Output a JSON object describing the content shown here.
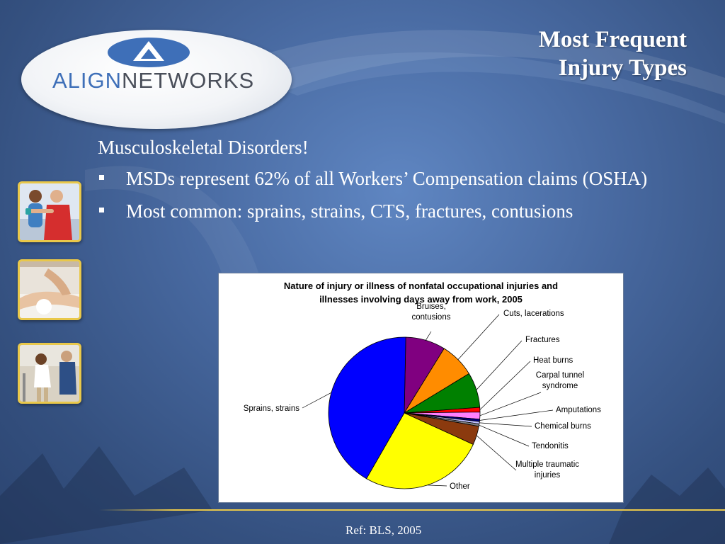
{
  "slide": {
    "title_line1": "Most Frequent",
    "title_line2": "Injury Types",
    "logo": {
      "align": "ALIGN",
      "networks": "NETWORKS"
    },
    "intro": "Musculoskeletal Disorders!",
    "bullets": [
      "MSDs represent 62% of all Workers’ Compensation claims (OSHA)",
      "Most common: sprains, strains, CTS, fractures, contusions"
    ],
    "reference": "Ref: BLS, 2005",
    "thumbnails": [
      "physical-therapy-photo",
      "massage-therapy-photo",
      "walking-rehab-photo"
    ]
  },
  "chart_data": {
    "type": "pie",
    "title_line1": "Nature of injury or illness of nonfatal occupational injuries and",
    "title_line2": "illnesses involving days away from work, 2005",
    "slices": [
      {
        "label": "Bruises, contusions",
        "value": 8.5,
        "color": "#800080"
      },
      {
        "label": "Cuts, lacerations",
        "value": 7.5,
        "color": "#ff8c00"
      },
      {
        "label": "Fractures",
        "value": 7.5,
        "color": "#008000"
      },
      {
        "label": "Heat burns",
        "value": 1.0,
        "color": "#ff0000"
      },
      {
        "label": "Carpal tunnel syndrome",
        "value": 1.5,
        "color": "#ff80ff"
      },
      {
        "label": "Amputations",
        "value": 0.5,
        "color": "#000080"
      },
      {
        "label": "Chemical burns",
        "value": 0.5,
        "color": "#c0c0ff"
      },
      {
        "label": "Tendonitis",
        "value": 0.5,
        "color": "#808080"
      },
      {
        "label": "Multiple traumatic injuries",
        "value": 4.0,
        "color": "#8b3a0e"
      },
      {
        "label": "Other",
        "value": 26.5,
        "color": "#ffff00"
      },
      {
        "label": "Sprains, strains",
        "value": 42.0,
        "color": "#0000ff"
      }
    ],
    "label_lines": [
      [
        "Bruises,",
        "contusions"
      ],
      [
        "Cuts, lacerations"
      ],
      [
        "Fractures"
      ],
      [
        "Heat burns"
      ],
      [
        "Carpal tunnel",
        "syndrome"
      ],
      [
        "Amputations"
      ],
      [
        "Chemical burns"
      ],
      [
        "Tendonitis"
      ],
      [
        "Multiple traumatic",
        "injuries"
      ],
      [
        "Other"
      ],
      [
        "Sprains, strains"
      ]
    ]
  }
}
